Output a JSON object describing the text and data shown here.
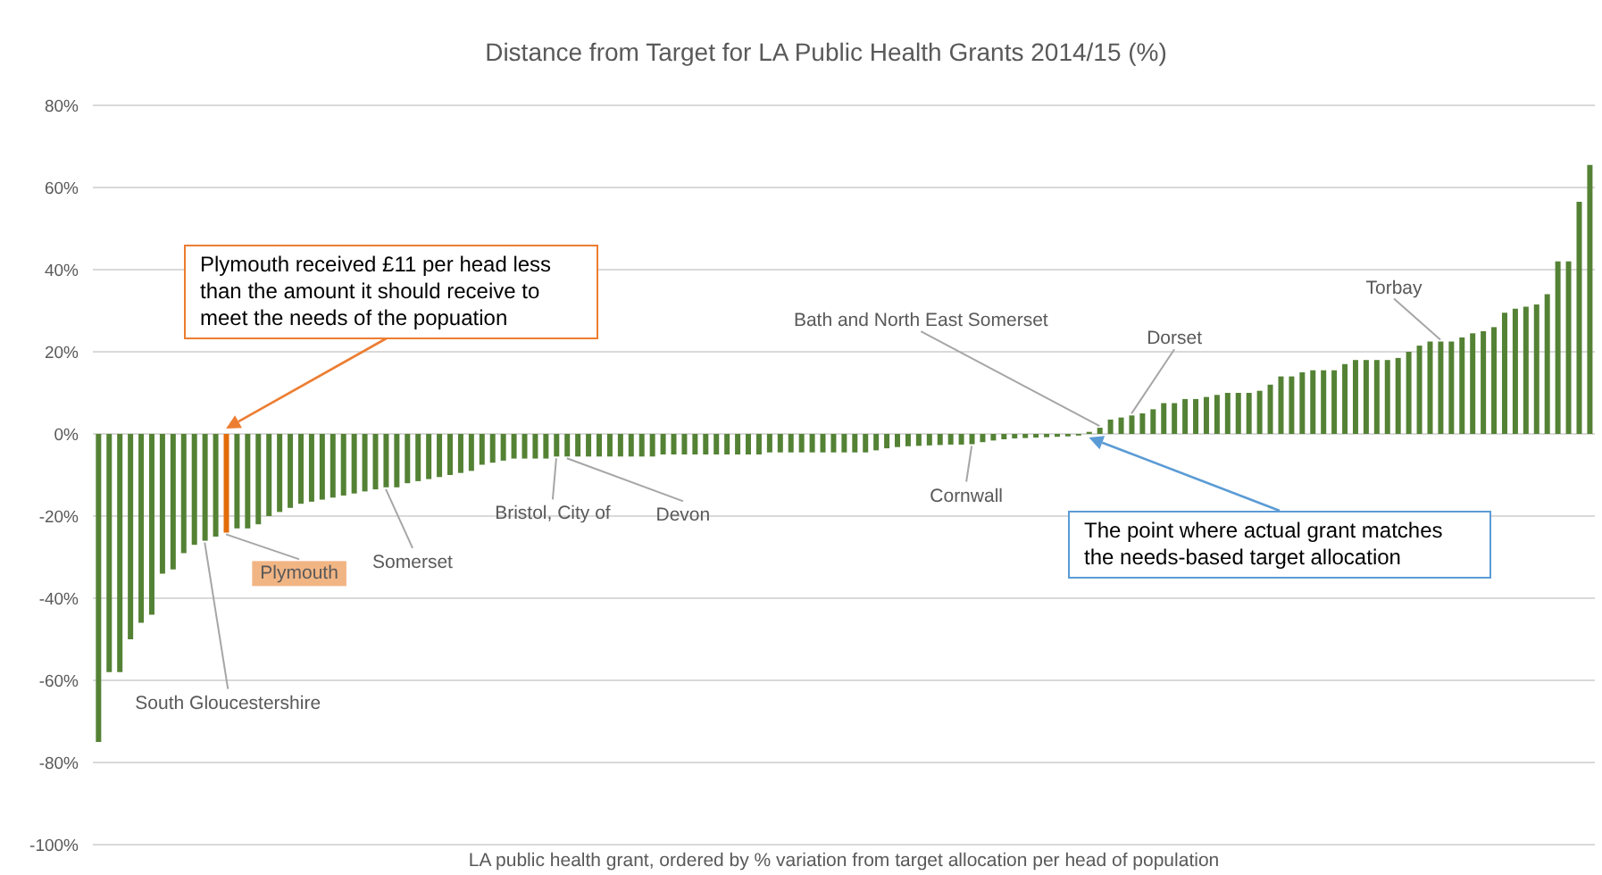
{
  "chart_data": {
    "type": "bar",
    "title": "Distance from Target for LA Public Health Grants 2014/15 (%)",
    "xlabel": "LA public health grant, ordered by % variation from target allocation per head of population",
    "categories": [
      null,
      null,
      null,
      null,
      null,
      null,
      null,
      null,
      null,
      null,
      null,
      null,
      null,
      null,
      null,
      null,
      null,
      null,
      null,
      null,
      null,
      null,
      null,
      null,
      null,
      null,
      null,
      null,
      null,
      null,
      null,
      null,
      null,
      null,
      null,
      null,
      null,
      null,
      null,
      null,
      null,
      null,
      null,
      null,
      null,
      null,
      null,
      null,
      null,
      null,
      null,
      null,
      null,
      null,
      null,
      null,
      null,
      null,
      null,
      null,
      null,
      null,
      null,
      null,
      null,
      null,
      null,
      null,
      null,
      null,
      null,
      null,
      null,
      null,
      null,
      null,
      null,
      null,
      null,
      null,
      null,
      null,
      null,
      null,
      null,
      null,
      null,
      null,
      null,
      null,
      null,
      null,
      null,
      null,
      null,
      null,
      null,
      null,
      null,
      null,
      null,
      null,
      null,
      null,
      null,
      null,
      null,
      null,
      null,
      null,
      null,
      null,
      null,
      null,
      null,
      null,
      null,
      null,
      null,
      null,
      null,
      null,
      null,
      null,
      null,
      null,
      null,
      null,
      null,
      null,
      null,
      null,
      null,
      null,
      null,
      null,
      null,
      null,
      null,
      null,
      null
    ],
    "values": [
      -75,
      -58,
      -58,
      -50,
      -46,
      -44,
      -34,
      -33,
      -29,
      -27,
      -26,
      -25,
      -24,
      -23,
      -23,
      -22,
      -20,
      -19,
      -18,
      -17,
      -16.5,
      -16,
      -15.5,
      -15,
      -14.5,
      -14,
      -13.5,
      -13,
      -13,
      -12,
      -11.5,
      -11,
      -10.5,
      -10,
      -9.5,
      -9,
      -7.5,
      -7,
      -6.5,
      -6,
      -6,
      -6,
      -6,
      -5.5,
      -5.5,
      -5.5,
      -5.5,
      -5.5,
      -5.5,
      -5.5,
      -5.5,
      -5.5,
      -5.5,
      -5,
      -5,
      -5,
      -5,
      -5,
      -5,
      -5,
      -5,
      -5,
      -5,
      -4.5,
      -4.5,
      -4.5,
      -4.5,
      -4.5,
      -4.5,
      -4.5,
      -4.5,
      -4.5,
      -4.5,
      -4,
      -3.5,
      -3.2,
      -3,
      -2.9,
      -2.8,
      -2.7,
      -2.6,
      -2.6,
      -2.5,
      -2,
      -1.6,
      -1.3,
      -1.1,
      -1,
      -0.9,
      -0.8,
      -0.7,
      -0.6,
      -0.4,
      0.5,
      1.5,
      3.5,
      4,
      4.5,
      5,
      6,
      7.5,
      7.5,
      8.5,
      8.5,
      9,
      9.5,
      10,
      10,
      10,
      10.5,
      12,
      14,
      14,
      15,
      15.5,
      15.5,
      15.5,
      17,
      18,
      18,
      18,
      18,
      18.5,
      20,
      21.5,
      22.5,
      22.5,
      22.5,
      23.5,
      24.5,
      25,
      26,
      29.5,
      30.5,
      31,
      31.5,
      34,
      42,
      42,
      56.5,
      65.5
    ],
    "colors": [
      "#548235",
      "#548235",
      "#548235",
      "#548235",
      "#548235",
      "#548235",
      "#548235",
      "#548235",
      "#548235",
      "#548235",
      "#548235",
      "#548235",
      "#e36c09",
      "#548235",
      "#548235",
      "#548235",
      "#548235",
      "#548235",
      "#548235",
      "#548235",
      "#548235",
      "#548235",
      "#548235",
      "#548235",
      "#548235",
      "#548235",
      "#548235",
      "#548235",
      "#548235",
      "#548235",
      "#548235",
      "#548235",
      "#548235",
      "#548235",
      "#548235",
      "#548235",
      "#548235",
      "#548235",
      "#548235",
      "#548235",
      "#548235",
      "#548235",
      "#548235",
      "#548235",
      "#548235",
      "#548235",
      "#548235",
      "#548235",
      "#548235",
      "#548235",
      "#548235",
      "#548235",
      "#548235",
      "#548235",
      "#548235",
      "#548235",
      "#548235",
      "#548235",
      "#548235",
      "#548235",
      "#548235",
      "#548235",
      "#548235",
      "#548235",
      "#548235",
      "#548235",
      "#548235",
      "#548235",
      "#548235",
      "#548235",
      "#548235",
      "#548235",
      "#548235",
      "#548235",
      "#548235",
      "#548235",
      "#548235",
      "#548235",
      "#548235",
      "#548235",
      "#548235",
      "#548235",
      "#548235",
      "#548235",
      "#548235",
      "#548235",
      "#548235",
      "#548235",
      "#548235",
      "#548235",
      "#548235",
      "#548235",
      "#548235",
      "#548235",
      "#548235",
      "#548235",
      "#548235",
      "#548235",
      "#548235",
      "#548235",
      "#548235",
      "#548235",
      "#548235",
      "#548235",
      "#548235",
      "#548235",
      "#548235",
      "#548235",
      "#548235",
      "#548235",
      "#548235",
      "#548235",
      "#548235",
      "#548235",
      "#548235",
      "#548235",
      "#548235",
      "#548235",
      "#548235",
      "#548235",
      "#548235",
      "#548235",
      "#548235",
      "#548235",
      "#548235",
      "#548235",
      "#548235",
      "#548235",
      "#548235",
      "#548235",
      "#548235",
      "#548235",
      "#548235",
      "#548235",
      "#548235",
      "#548235",
      "#548235",
      "#548235",
      "#548235",
      "#548235",
      "#548235"
    ],
    "ylim": [
      -100,
      80
    ],
    "yticks": [
      {
        "value": -100,
        "label": "-100%"
      },
      {
        "value": -80,
        "label": "-80%"
      },
      {
        "value": -60,
        "label": "-60%"
      },
      {
        "value": -40,
        "label": "-40%"
      },
      {
        "value": -20,
        "label": "-20%"
      },
      {
        "value": 0,
        "label": "0%"
      },
      {
        "value": 20,
        "label": "20%"
      },
      {
        "value": 40,
        "label": "40%"
      },
      {
        "value": 60,
        "label": "60%"
      },
      {
        "value": 80,
        "label": "80%"
      }
    ],
    "grid": "y",
    "legend": false,
    "annotations": [
      "Plymouth received £11 per head less than the amount it should receive to meet the needs of the popuation",
      "The point where actual grant matches the needs-based target allocation",
      "South Gloucestershire",
      "Plymouth",
      "Somerset",
      "Bristol, City of",
      "Devon",
      "Cornwall",
      "Bath and North East Somerset",
      "Dorset",
      "Torbay"
    ]
  }
}
